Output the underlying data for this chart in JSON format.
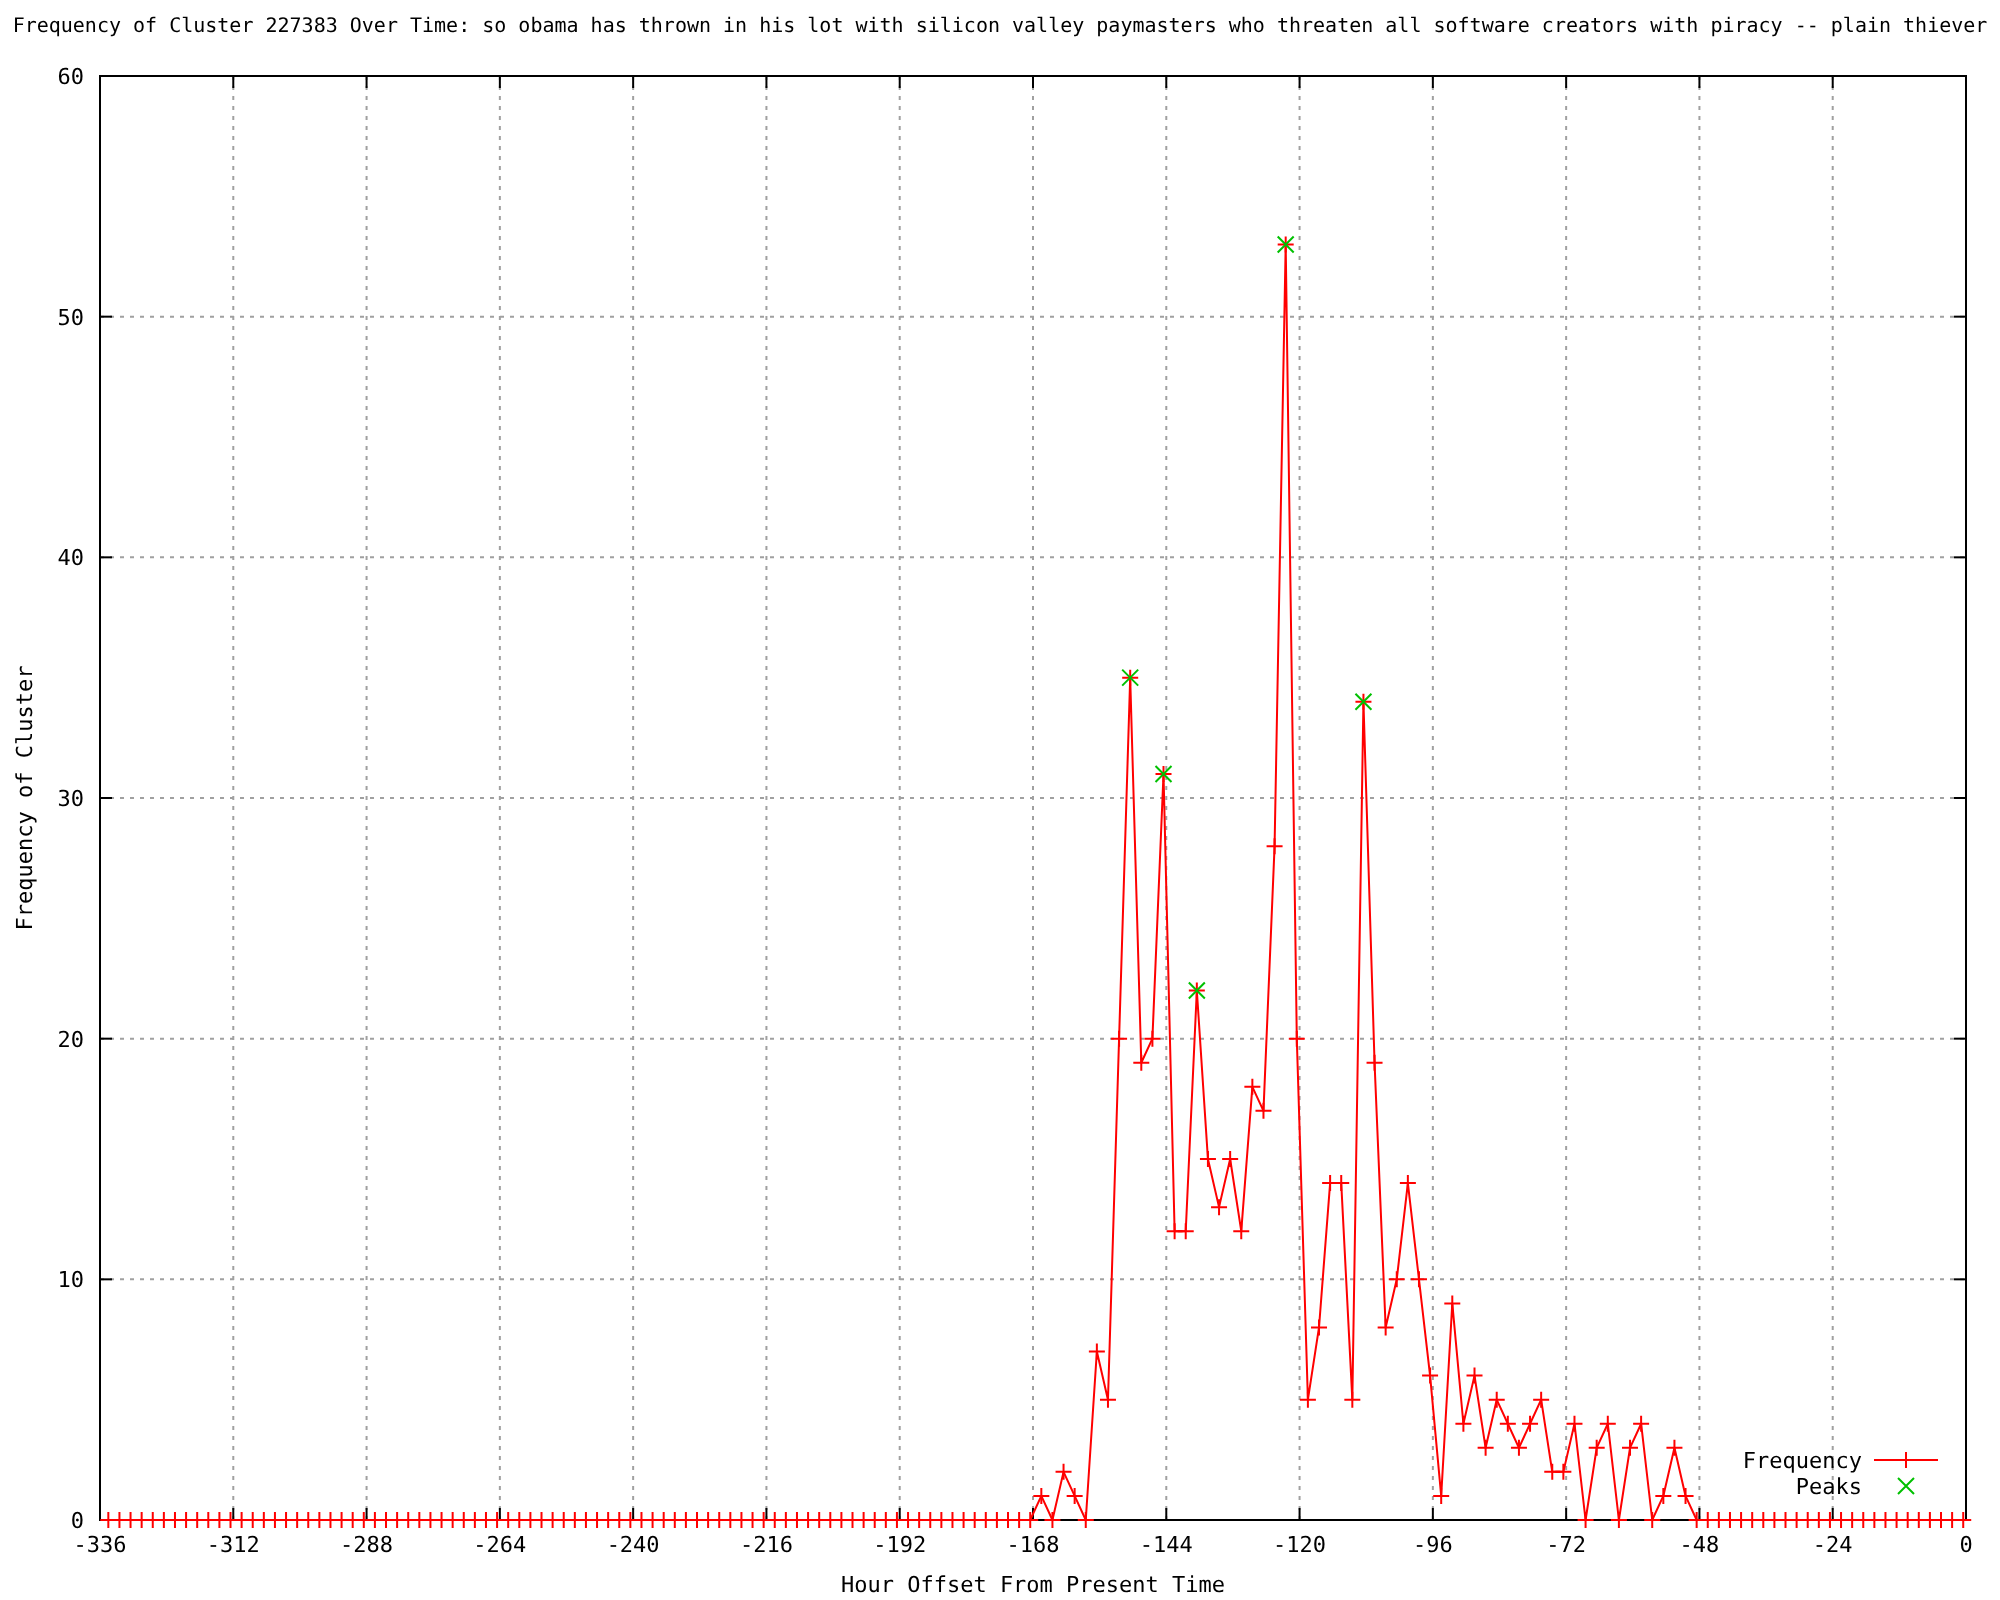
{
  "chart_data": {
    "type": "line",
    "title": "Frequency of Cluster 227383 Over Time: so obama has thrown in his lot with silicon valley paymasters who threaten all software creators with piracy -- plain thiever",
    "xlabel": "Hour Offset From Present Time",
    "ylabel": "Frequency of Cluster",
    "xlim": [
      -336,
      0
    ],
    "xticks": [
      -336,
      -312,
      -288,
      -264,
      -240,
      -216,
      -192,
      -168,
      -144,
      -120,
      -96,
      -72,
      -48,
      -24,
      0
    ],
    "ylim": [
      0,
      60
    ],
    "yticks": [
      0,
      10,
      20,
      30,
      40,
      50,
      60
    ],
    "grid": true,
    "legend": "bottom right",
    "series": [
      {
        "name": "Frequency",
        "color": "#ff0000",
        "marker": "cross",
        "x": [
          -334.5,
          -332.5,
          -330.5,
          -328.5,
          -326.5,
          -324.5,
          -322.5,
          -320.5,
          -318.5,
          -316.5,
          -314.5,
          -312.5,
          -310.5,
          -308.5,
          -306.5,
          -304.5,
          -302.5,
          -300.5,
          -298.5,
          -296.5,
          -294.5,
          -292.5,
          -290.5,
          -288.5,
          -286.5,
          -284.5,
          -282.5,
          -280.5,
          -278.5,
          -276.5,
          -274.5,
          -272.5,
          -270.5,
          -268.5,
          -266.5,
          -264.5,
          -262.5,
          -260.5,
          -258.5,
          -256.5,
          -254.5,
          -252.5,
          -250.5,
          -248.5,
          -246.5,
          -244.5,
          -242.5,
          -240.5,
          -238.5,
          -236.5,
          -234.5,
          -232.5,
          -230.5,
          -228.5,
          -226.5,
          -224.5,
          -222.5,
          -220.5,
          -218.5,
          -216.5,
          -214.5,
          -212.5,
          -210.5,
          -208.5,
          -206.5,
          -204.5,
          -202.5,
          -200.5,
          -198.5,
          -196.5,
          -194.5,
          -192.5,
          -190.5,
          -188.5,
          -186.5,
          -184.5,
          -182.5,
          -180.5,
          -178.5,
          -176.5,
          -174.5,
          -172.5,
          -170.5,
          -168.5,
          -166.5,
          -164.5,
          -162.5,
          -160.5,
          -158.5,
          -156.5,
          -154.5,
          -152.5,
          -150.5,
          -148.5,
          -146.5,
          -144.5,
          -142.5,
          -140.5,
          -138.5,
          -136.5,
          -134.5,
          -132.5,
          -130.5,
          -128.5,
          -126.5,
          -124.5,
          -122.5,
          -120.5,
          -118.5,
          -116.5,
          -114.5,
          -112.5,
          -110.5,
          -108.5,
          -106.5,
          -104.5,
          -102.5,
          -100.5,
          -98.5,
          -96.5,
          -94.5,
          -92.5,
          -90.5,
          -88.5,
          -86.5,
          -84.5,
          -82.5,
          -80.5,
          -78.5,
          -76.5,
          -74.5,
          -72.5,
          -70.5,
          -68.5,
          -66.5,
          -64.5,
          -62.5,
          -60.5,
          -58.5,
          -56.5,
          -54.5,
          -52.5,
          -50.5,
          -48.5,
          -46.5,
          -44.5,
          -42.5,
          -40.5,
          -38.5,
          -36.5,
          -34.5,
          -32.5,
          -30.5,
          -28.5,
          -26.5,
          -24.5,
          -22.5,
          -20.5,
          -18.5,
          -16.5,
          -14.5,
          -12.5,
          -10.5,
          -8.5,
          -6.5,
          -4.5,
          -2.5,
          -0.5
        ],
        "values": [
          0,
          0,
          0,
          0,
          0,
          0,
          0,
          0,
          0,
          0,
          0,
          0,
          0,
          0,
          0,
          0,
          0,
          0,
          0,
          0,
          0,
          0,
          0,
          0,
          0,
          0,
          0,
          0,
          0,
          0,
          0,
          0,
          0,
          0,
          0,
          0,
          0,
          0,
          0,
          0,
          0,
          0,
          0,
          0,
          0,
          0,
          0,
          0,
          0,
          0,
          0,
          0,
          0,
          0,
          0,
          0,
          0,
          0,
          0,
          0,
          0,
          0,
          0,
          0,
          0,
          0,
          0,
          0,
          0,
          0,
          0,
          0,
          0,
          0,
          0,
          0,
          0,
          0,
          0,
          0,
          0,
          0,
          0,
          0,
          1,
          0,
          2,
          1,
          0,
          7,
          5,
          20,
          35,
          19,
          20,
          31,
          12,
          12,
          22,
          15,
          13,
          15,
          12,
          18,
          17,
          28,
          53,
          20,
          5,
          8,
          14,
          14,
          5,
          34,
          19,
          8,
          10,
          14,
          10,
          6,
          1,
          9,
          4,
          6,
          3,
          5,
          4,
          3,
          4,
          5,
          2,
          2,
          4,
          0,
          3,
          4,
          0,
          3,
          4,
          0,
          1,
          3,
          1,
          0,
          0,
          0,
          0,
          0,
          0,
          0,
          0,
          0,
          0,
          0,
          0,
          0,
          0,
          0,
          0,
          0,
          0,
          0,
          0,
          0,
          0,
          0,
          0,
          0
        ]
      },
      {
        "name": "Peaks",
        "type": "scatter",
        "color": "#00c000",
        "marker": "cross",
        "x": [
          -150.5,
          -144.5,
          -138.5,
          -122.5,
          -108.5
        ],
        "values": [
          35,
          31,
          22,
          53,
          34
        ]
      }
    ]
  }
}
